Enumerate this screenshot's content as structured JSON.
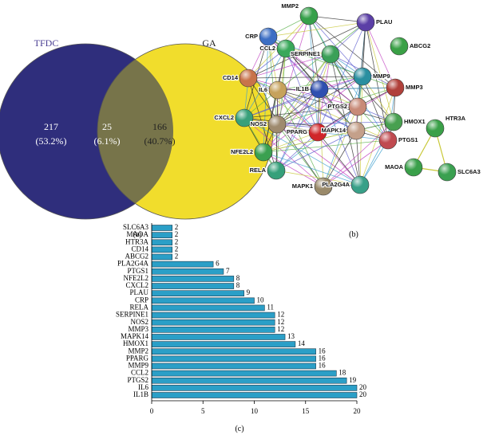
{
  "chart_data": [
    {
      "type": "venn",
      "panel": "(a)",
      "sets": [
        {
          "name": "TFDC",
          "color": "#2f2e7c"
        },
        {
          "name": "GA",
          "color": "#f1dd2c"
        }
      ],
      "overlap_color": "#77744a",
      "values": [
        217,
        25,
        166
      ],
      "percents": [
        53.2,
        6.1,
        40.7
      ],
      "percent_labels": [
        "(53.2%)",
        "(6.1%)",
        "(40.7%)"
      ]
    },
    {
      "type": "network",
      "panel": "(b)",
      "nodes": [
        "MMP2",
        "PLAU",
        "CRP",
        "ABCG2",
        "CCL2",
        "SERPINE1",
        "CD14",
        "MMP9",
        "IL6",
        "IL1B",
        "MMP3",
        "PTGS2",
        "HMOX1",
        "CXCL2",
        "NOS2",
        "PPARG",
        "HTR3A",
        "PTGS1",
        "MAPK14",
        "NFE2L2",
        "RELA",
        "MAOA",
        "SLC6A3",
        "MAPK1",
        "PLA2G4A"
      ]
    },
    {
      "type": "bar",
      "panel": "(c)",
      "orientation": "horizontal",
      "color": "#2b9fc7",
      "categories": [
        "SLC6A3",
        "MAOA",
        "HTR3A",
        "CD14",
        "ABCG2",
        "PLA2G4A",
        "PTGS1",
        "NFE2L2",
        "CXCL2",
        "PLAU",
        "CRP",
        "RELA",
        "SERPINE1",
        "NOS2",
        "MMP3",
        "MAPK14",
        "HMOX1",
        "MMP2",
        "PPARG",
        "MMP9",
        "CCL2",
        "PTGS2",
        "IL6",
        "IL1B"
      ],
      "values": [
        2,
        2,
        2,
        2,
        2,
        6,
        7,
        8,
        8,
        9,
        10,
        11,
        12,
        12,
        12,
        13,
        14,
        16,
        16,
        16,
        18,
        19,
        20,
        20
      ],
      "xlim": [
        0,
        20
      ],
      "xticks": [
        0,
        5,
        10,
        15,
        20
      ]
    }
  ]
}
